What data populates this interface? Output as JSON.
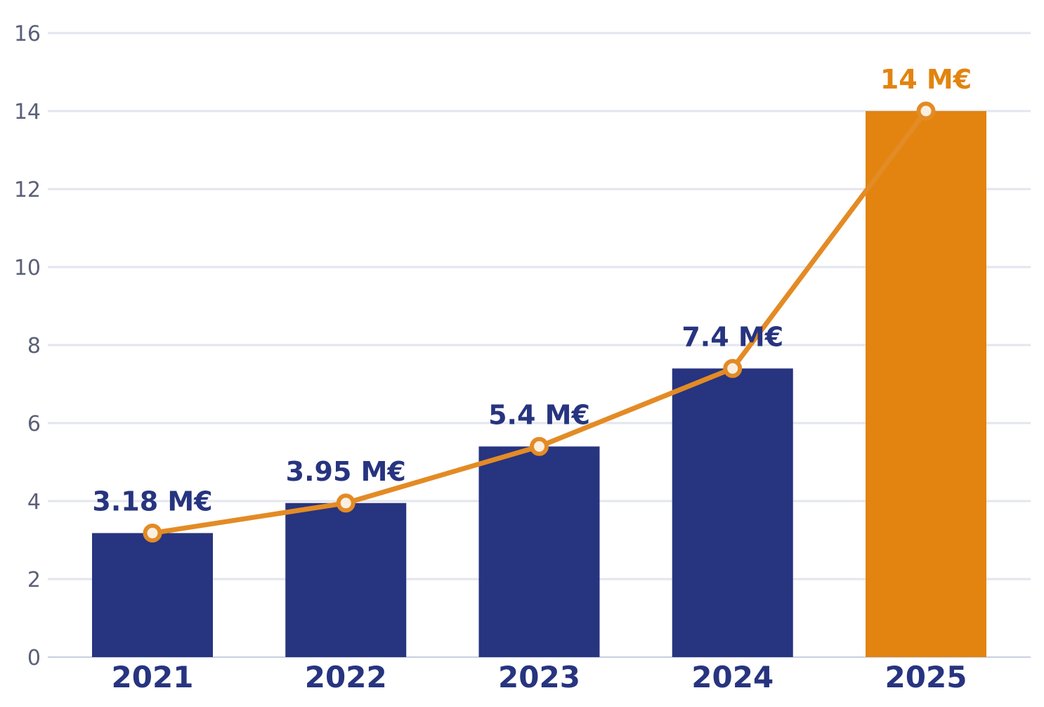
{
  "chart_data": {
    "type": "bar",
    "categories": [
      "2021",
      "2022",
      "2023",
      "2024",
      "2025"
    ],
    "values": [
      3.18,
      3.95,
      5.4,
      7.4,
      14
    ],
    "data_labels": [
      "3.18 M€",
      "3.95 M€",
      "5.4 M€",
      "7.4 M€",
      "14 M€"
    ],
    "overlay_line": {
      "values": [
        3.18,
        3.95,
        5.4,
        7.4,
        14
      ]
    },
    "ylim": [
      0,
      16
    ],
    "yticks": [
      "0",
      "2",
      "4",
      "6",
      "8",
      "10",
      "12",
      "14",
      "16"
    ],
    "grid": true,
    "title": "",
    "xlabel": "",
    "ylabel": "",
    "colors": {
      "bar": "#27347f",
      "highlight_bar": "#e2840f",
      "line": "#e38b25",
      "marker_fill": "#fbefe2",
      "highlight_label": "#e2840f"
    },
    "highlight_index": 4
  }
}
